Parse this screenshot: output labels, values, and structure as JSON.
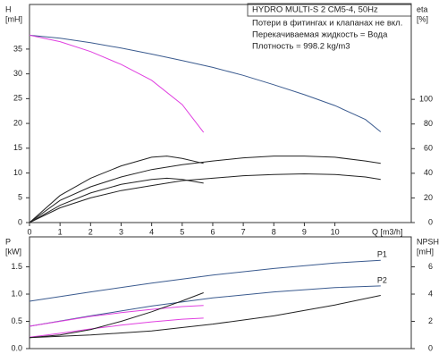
{
  "chart_data": [
    {
      "type": "line",
      "title": "HYDRO MULTI-S 2 CM5-4, 50Hz",
      "annotations": [
        "Потери в фитингах и клапанах не вкл.",
        "Перекачиваемая жидкость = Вода",
        "Плотность = 998.2 kg/m3"
      ],
      "ylabel": "H",
      "ylabel_unit": "[mH]",
      "y2label": "eta",
      "y2label_unit": "[%]",
      "xlabel": "Q [m3/h]",
      "xlim": [
        0,
        12.5
      ],
      "xticks": [
        0,
        1,
        2,
        3,
        4,
        5,
        6,
        7,
        8,
        9,
        10
      ],
      "ylim": [
        0,
        44
      ],
      "yticks": [
        0,
        5,
        10,
        15,
        20,
        25,
        30,
        35
      ],
      "y2lim": [
        0,
        177
      ],
      "y2ticks": [
        0,
        20,
        40,
        60,
        80,
        100
      ],
      "series": [
        {
          "color": "#3b5b8f",
          "x": [
            0,
            1,
            2,
            3,
            4,
            5,
            6,
            7,
            8,
            9,
            10,
            11,
            11.5
          ],
          "values": [
            37.8,
            37.2,
            36.3,
            35.2,
            34,
            32.7,
            31.3,
            29.7,
            27.8,
            25.8,
            23.6,
            20.8,
            18.3
          ]
        },
        {
          "color": "#e040e0",
          "x": [
            0,
            1,
            2,
            3,
            4,
            5,
            5.7
          ],
          "values": [
            37.8,
            36.5,
            34.5,
            31.9,
            28.7,
            23.8,
            18.2
          ]
        },
        {
          "color": "#222222",
          "axis": "y2",
          "x": [
            0,
            1,
            2,
            3,
            4,
            5,
            6,
            7,
            8,
            9,
            10,
            11,
            11.5
          ],
          "values": [
            0,
            18,
            29,
            37,
            43,
            47,
            50,
            52.5,
            54,
            54,
            53,
            50,
            48
          ]
        },
        {
          "color": "#222222",
          "axis": "y2",
          "x": [
            0,
            1,
            2,
            3,
            4,
            5,
            6,
            7,
            8,
            9,
            10,
            11,
            11.5
          ],
          "values": [
            0,
            12,
            20,
            26,
            30,
            34,
            36,
            38,
            39,
            39.5,
            39,
            37,
            35
          ]
        },
        {
          "color": "#222222",
          "axis": "y2",
          "x": [
            0,
            1,
            2,
            3,
            4,
            4.5,
            5,
            5.7
          ],
          "values": [
            0,
            22,
            36,
            46,
            53,
            54,
            52,
            48
          ]
        },
        {
          "color": "#222222",
          "axis": "y2",
          "x": [
            0,
            1,
            2,
            3,
            4,
            4.5,
            5,
            5.7
          ],
          "values": [
            0,
            14,
            24,
            31,
            35,
            36,
            35,
            32
          ]
        }
      ]
    },
    {
      "type": "line",
      "ylabel": "P",
      "ylabel_unit": "[kW]",
      "y2label": "NPSH",
      "y2label_unit": "[mH]",
      "xlim": [
        0,
        12.5
      ],
      "ylim": [
        0,
        2.05
      ],
      "yticks": [
        {
          "value": 0,
          "label": "0.0"
        },
        {
          "value": 0.5,
          "label": "0.5"
        },
        {
          "value": 1,
          "label": "1.0"
        },
        {
          "value": 1.5,
          "label": "1.5"
        }
      ],
      "y2lim": [
        0,
        8.2
      ],
      "y2ticks": [
        0,
        2,
        4,
        6
      ],
      "series": [
        {
          "name": "P1",
          "color": "#3b5b8f",
          "x": [
            0,
            2,
            4,
            6,
            8,
            10,
            11.5
          ],
          "values": [
            0.87,
            1.04,
            1.2,
            1.35,
            1.47,
            1.57,
            1.62
          ]
        },
        {
          "name": "P2",
          "color": "#3b5b8f",
          "x": [
            0,
            2,
            4,
            6,
            8,
            10,
            11.5
          ],
          "values": [
            0.41,
            0.6,
            0.78,
            0.93,
            1.04,
            1.12,
            1.15
          ]
        },
        {
          "color": "#e040e0",
          "x": [
            0,
            1,
            2,
            3,
            4,
            5,
            5.7
          ],
          "values": [
            0.41,
            0.5,
            0.59,
            0.66,
            0.72,
            0.77,
            0.79
          ]
        },
        {
          "color": "#e040e0",
          "x": [
            0,
            1,
            2,
            3,
            4,
            5,
            5.7
          ],
          "values": [
            0.21,
            0.28,
            0.36,
            0.43,
            0.49,
            0.54,
            0.56
          ]
        },
        {
          "color": "#222222",
          "axis": "y2",
          "x": [
            0,
            2,
            4,
            6,
            8,
            10,
            11.5
          ],
          "values": [
            0.8,
            1,
            1.3,
            1.8,
            2.4,
            3.2,
            3.9
          ]
        },
        {
          "color": "#222222",
          "axis": "y2",
          "x": [
            0,
            1,
            2,
            3,
            4,
            5,
            5.7
          ],
          "values": [
            0.8,
            1,
            1.4,
            2,
            2.7,
            3.5,
            4.1
          ]
        }
      ]
    }
  ]
}
